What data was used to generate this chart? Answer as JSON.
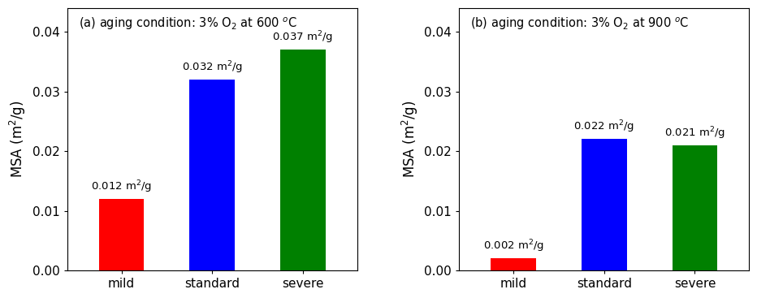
{
  "subplots": [
    {
      "label": "(a) aging condition: 3% O$_2$ at 600 $^o$C",
      "categories": [
        "mild",
        "standard",
        "severe"
      ],
      "values": [
        0.012,
        0.032,
        0.037
      ],
      "annotations": [
        "0.012 m$^2$/g",
        "0.032 m$^2$/g",
        "0.037 m$^2$/g"
      ],
      "colors": [
        "#ff0000",
        "#0000ff",
        "#008000"
      ]
    },
    {
      "label": "(b) aging condition: 3% O$_2$ at 900 $^o$C",
      "categories": [
        "mild",
        "standard",
        "severe"
      ],
      "values": [
        0.002,
        0.022,
        0.021
      ],
      "annotations": [
        "0.002 m$^2$/g",
        "0.022 m$^2$/g",
        "0.021 m$^2$/g"
      ],
      "colors": [
        "#ff0000",
        "#0000ff",
        "#008000"
      ]
    }
  ],
  "ylabel": "MSA (m$^2$/g)",
  "ylim": [
    0,
    0.044
  ],
  "yticks": [
    0.0,
    0.01,
    0.02,
    0.03,
    0.04
  ],
  "bar_width": 0.5,
  "annotation_fontsize": 9.5,
  "label_fontsize": 10.5,
  "tick_fontsize": 11,
  "ylabel_fontsize": 12
}
